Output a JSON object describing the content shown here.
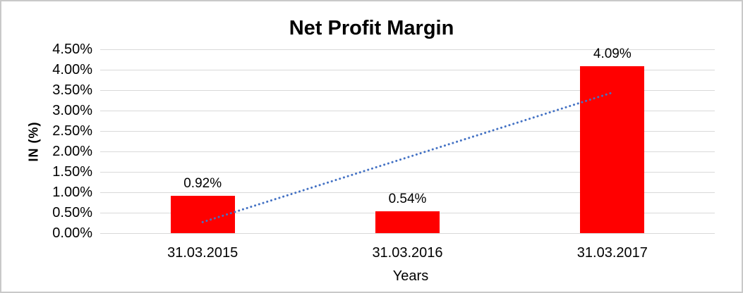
{
  "chart_data": {
    "type": "bar",
    "title": "Net Profit Margin",
    "xlabel": "Years",
    "ylabel": "IN (%)",
    "categories": [
      "31.03.2015",
      "31.03.2016",
      "31.03.2017"
    ],
    "values": [
      0.92,
      0.54,
      4.09
    ],
    "data_labels": [
      "0.92%",
      "0.54%",
      "4.09%"
    ],
    "ytick_labels": [
      "4.50%",
      "4.00%",
      "3.50%",
      "3.00%",
      "2.50%",
      "2.00%",
      "1.50%",
      "1.00%",
      "0.50%",
      "0.00%"
    ],
    "ytick_values": [
      4.5,
      4.0,
      3.5,
      3.0,
      2.5,
      2.0,
      1.5,
      1.0,
      0.5,
      0.0
    ],
    "ylim": [
      0,
      4.5
    ],
    "grid": true,
    "legend": "none",
    "bar_color": "#ff0000",
    "gridline_color": "#d9d9d9",
    "text_color": "#000000",
    "trendline": {
      "style": "dotted",
      "color": "#4472c4",
      "start": {
        "category_index": 0,
        "value": 0.27
      },
      "end": {
        "category_index": 2,
        "value": 3.44
      }
    }
  }
}
